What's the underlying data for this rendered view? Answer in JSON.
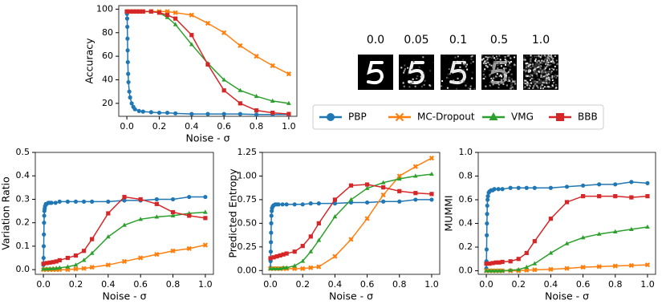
{
  "chart_data": [
    {
      "type": "line",
      "ylabel": "Accuracy",
      "xlabel": "Noise - σ",
      "xlim": [
        -0.05,
        1.05
      ],
      "xticks": [
        {
          "value": 0,
          "label": "0.0"
        },
        0.2,
        0.4,
        0.6,
        0.8,
        {
          "value": 1,
          "label": "1.0"
        }
      ],
      "ylim": [
        9,
        103
      ],
      "yticks": [
        20,
        40,
        60,
        80,
        100
      ],
      "series": [
        {
          "name": "PBP",
          "color": "#1f77b4",
          "marker": "o",
          "x": [
            0,
            0.001,
            0.002,
            0.003,
            0.004,
            0.005,
            0.006,
            0.008,
            0.01,
            0.015,
            0.02,
            0.03,
            0.04,
            0.05,
            0.075,
            0.1,
            0.15,
            0.2,
            0.25,
            0.3,
            0.4,
            0.5,
            0.6,
            0.7,
            0.8,
            0.9,
            1.0
          ],
          "values": [
            98,
            96,
            92,
            85,
            75,
            65,
            55,
            45,
            38,
            30,
            25,
            20,
            17,
            15,
            13.5,
            13,
            12.5,
            12,
            12,
            11.5,
            11,
            11,
            11,
            11,
            10.5,
            10.5,
            10.5
          ]
        },
        {
          "name": "MC-Dropout",
          "color": "#ff7f0e",
          "marker": "x",
          "x": [
            0,
            0.02,
            0.04,
            0.06,
            0.08,
            0.1,
            0.15,
            0.2,
            0.25,
            0.3,
            0.4,
            0.5,
            0.6,
            0.7,
            0.8,
            0.9,
            1.0
          ],
          "values": [
            98,
            98,
            98,
            98,
            98,
            98,
            98,
            98,
            98,
            97,
            95,
            88,
            80,
            69,
            60,
            52,
            45
          ]
        },
        {
          "name": "VMG",
          "color": "#2ca02c",
          "marker": "^",
          "x": [
            0,
            0.02,
            0.04,
            0.06,
            0.08,
            0.1,
            0.15,
            0.2,
            0.25,
            0.3,
            0.4,
            0.5,
            0.6,
            0.7,
            0.8,
            0.9,
            1.0
          ],
          "values": [
            98,
            98,
            98,
            98,
            98,
            98,
            98,
            97,
            93,
            87,
            70,
            54,
            40,
            31,
            26,
            22,
            20
          ]
        },
        {
          "name": "BBB",
          "color": "#d62728",
          "marker": "s",
          "x": [
            0,
            0.02,
            0.04,
            0.06,
            0.08,
            0.1,
            0.15,
            0.2,
            0.25,
            0.3,
            0.4,
            0.5,
            0.6,
            0.7,
            0.8,
            0.9,
            1.0
          ],
          "values": [
            98,
            98,
            98,
            98,
            98,
            98,
            98,
            97,
            95,
            92,
            78,
            53,
            31,
            20,
            14,
            12,
            11
          ]
        }
      ]
    },
    {
      "type": "line",
      "ylabel": "Variation Ratio",
      "xlabel": "Noise - σ",
      "xlim": [
        -0.05,
        1.05
      ],
      "xticks": [
        {
          "value": 0,
          "label": "0.0"
        },
        0.2,
        0.4,
        0.6,
        0.8,
        {
          "value": 1,
          "label": "1.0"
        }
      ],
      "ylim": [
        -0.02,
        0.5
      ],
      "yticks": [
        {
          "value": 0,
          "label": "0.0"
        },
        0.1,
        0.2,
        0.3,
        0.4,
        0.5
      ],
      "series": [
        {
          "name": "PBP",
          "color": "#1f77b4",
          "marker": "o",
          "x": [
            0,
            0.001,
            0.002,
            0.003,
            0.004,
            0.005,
            0.006,
            0.008,
            0.01,
            0.015,
            0.02,
            0.03,
            0.04,
            0.05,
            0.075,
            0.1,
            0.15,
            0.2,
            0.25,
            0.3,
            0.4,
            0.5,
            0.6,
            0.7,
            0.8,
            0.9,
            1.0
          ],
          "values": [
            0.02,
            0.05,
            0.1,
            0.15,
            0.2,
            0.23,
            0.25,
            0.26,
            0.27,
            0.28,
            0.28,
            0.285,
            0.285,
            0.285,
            0.285,
            0.29,
            0.29,
            0.29,
            0.29,
            0.29,
            0.29,
            0.295,
            0.295,
            0.3,
            0.3,
            0.31,
            0.31
          ]
        },
        {
          "name": "MC-Dropout",
          "color": "#ff7f0e",
          "marker": "x",
          "x": [
            0,
            0.02,
            0.04,
            0.06,
            0.08,
            0.1,
            0.15,
            0.2,
            0.25,
            0.3,
            0.4,
            0.5,
            0.6,
            0.7,
            0.8,
            0.9,
            1.0
          ],
          "values": [
            0,
            0,
            0,
            0,
            0,
            0,
            0,
            0.003,
            0.005,
            0.01,
            0.02,
            0.035,
            0.05,
            0.065,
            0.08,
            0.09,
            0.105
          ]
        },
        {
          "name": "VMG",
          "color": "#2ca02c",
          "marker": "^",
          "x": [
            0,
            0.02,
            0.04,
            0.06,
            0.08,
            0.1,
            0.15,
            0.2,
            0.25,
            0.3,
            0.4,
            0.5,
            0.6,
            0.7,
            0.8,
            0.9,
            1.0
          ],
          "values": [
            0.003,
            0.003,
            0.004,
            0.005,
            0.006,
            0.008,
            0.012,
            0.02,
            0.04,
            0.07,
            0.14,
            0.19,
            0.215,
            0.225,
            0.23,
            0.24,
            0.245
          ]
        },
        {
          "name": "BBB",
          "color": "#d62728",
          "marker": "s",
          "x": [
            0,
            0.02,
            0.04,
            0.06,
            0.08,
            0.1,
            0.15,
            0.2,
            0.25,
            0.3,
            0.4,
            0.5,
            0.6,
            0.7,
            0.8,
            0.9,
            1.0
          ],
          "values": [
            0.025,
            0.028,
            0.03,
            0.032,
            0.035,
            0.04,
            0.05,
            0.06,
            0.08,
            0.13,
            0.24,
            0.31,
            0.3,
            0.28,
            0.245,
            0.23,
            0.22
          ]
        }
      ]
    },
    {
      "type": "line",
      "ylabel": "Predicted Entropy",
      "xlabel": "Noise - σ",
      "xlim": [
        -0.05,
        1.05
      ],
      "xticks": [
        {
          "value": 0,
          "label": "0.0"
        },
        0.2,
        0.4,
        0.6,
        0.8,
        {
          "value": 1,
          "label": "1.0"
        }
      ],
      "ylim": [
        -0.04,
        1.25
      ],
      "yticks": [
        {
          "value": 0,
          "label": "0.00"
        },
        0.25,
        {
          "value": 0.5,
          "label": "0.50"
        },
        0.75,
        {
          "value": 1,
          "label": "1.00"
        },
        1.25
      ],
      "series": [
        {
          "name": "PBP",
          "color": "#1f77b4",
          "marker": "o",
          "x": [
            0,
            0.001,
            0.002,
            0.003,
            0.004,
            0.005,
            0.006,
            0.008,
            0.01,
            0.015,
            0.02,
            0.03,
            0.04,
            0.05,
            0.075,
            0.1,
            0.15,
            0.2,
            0.25,
            0.3,
            0.4,
            0.5,
            0.6,
            0.7,
            0.8,
            0.9,
            1.0
          ],
          "values": [
            0.03,
            0.1,
            0.2,
            0.3,
            0.4,
            0.5,
            0.58,
            0.63,
            0.66,
            0.68,
            0.69,
            0.7,
            0.7,
            0.7,
            0.7,
            0.7,
            0.7,
            0.7,
            0.71,
            0.71,
            0.71,
            0.72,
            0.72,
            0.73,
            0.73,
            0.75,
            0.75
          ]
        },
        {
          "name": "MC-Dropout",
          "color": "#ff7f0e",
          "marker": "x",
          "x": [
            0,
            0.02,
            0.04,
            0.06,
            0.08,
            0.1,
            0.15,
            0.2,
            0.25,
            0.3,
            0.4,
            0.5,
            0.6,
            0.7,
            0.8,
            0.9,
            1.0
          ],
          "values": [
            0.02,
            0.02,
            0.02,
            0.02,
            0.02,
            0.02,
            0.02,
            0.02,
            0.03,
            0.04,
            0.15,
            0.33,
            0.55,
            0.8,
            1.0,
            1.1,
            1.19
          ]
        },
        {
          "name": "VMG",
          "color": "#2ca02c",
          "marker": "^",
          "x": [
            0,
            0.02,
            0.04,
            0.06,
            0.08,
            0.1,
            0.15,
            0.2,
            0.25,
            0.3,
            0.4,
            0.5,
            0.6,
            0.7,
            0.8,
            0.9,
            1.0
          ],
          "values": [
            0.02,
            0.02,
            0.02,
            0.02,
            0.03,
            0.03,
            0.05,
            0.1,
            0.2,
            0.32,
            0.57,
            0.75,
            0.87,
            0.93,
            0.97,
            1.0,
            1.02
          ]
        },
        {
          "name": "BBB",
          "color": "#d62728",
          "marker": "s",
          "x": [
            0,
            0.02,
            0.04,
            0.06,
            0.08,
            0.1,
            0.15,
            0.2,
            0.25,
            0.3,
            0.4,
            0.5,
            0.6,
            0.7,
            0.8,
            0.9,
            1.0
          ],
          "values": [
            0.13,
            0.14,
            0.15,
            0.16,
            0.17,
            0.18,
            0.2,
            0.26,
            0.36,
            0.5,
            0.75,
            0.9,
            0.91,
            0.88,
            0.84,
            0.82,
            0.81
          ]
        }
      ]
    },
    {
      "type": "line",
      "ylabel": "MUMMI",
      "xlabel": "Noise - σ",
      "xlim": [
        -0.05,
        1.05
      ],
      "xticks": [
        {
          "value": 0,
          "label": "0.0"
        },
        0.2,
        0.4,
        0.6,
        0.8,
        {
          "value": 1,
          "label": "1.0"
        }
      ],
      "ylim": [
        -0.03,
        1.0
      ],
      "yticks": [
        {
          "value": 0,
          "label": "0.0"
        },
        0.2,
        0.4,
        0.6,
        0.8,
        {
          "value": 1,
          "label": "1.0"
        }
      ],
      "series": [
        {
          "name": "PBP",
          "color": "#1f77b4",
          "marker": "o",
          "x": [
            0,
            0.001,
            0.002,
            0.003,
            0.004,
            0.005,
            0.006,
            0.008,
            0.01,
            0.015,
            0.02,
            0.03,
            0.04,
            0.05,
            0.075,
            0.1,
            0.15,
            0.2,
            0.25,
            0.3,
            0.4,
            0.5,
            0.6,
            0.7,
            0.8,
            0.9,
            1.0
          ],
          "values": [
            0.02,
            0.08,
            0.18,
            0.3,
            0.4,
            0.48,
            0.55,
            0.6,
            0.63,
            0.66,
            0.67,
            0.68,
            0.68,
            0.69,
            0.69,
            0.69,
            0.7,
            0.7,
            0.7,
            0.7,
            0.7,
            0.71,
            0.72,
            0.73,
            0.73,
            0.75,
            0.74
          ]
        },
        {
          "name": "MC-Dropout",
          "color": "#ff7f0e",
          "marker": "x",
          "x": [
            0,
            0.02,
            0.04,
            0.06,
            0.08,
            0.1,
            0.15,
            0.2,
            0.25,
            0.3,
            0.4,
            0.5,
            0.6,
            0.7,
            0.8,
            0.9,
            1.0
          ],
          "values": [
            0,
            0,
            0,
            0,
            0,
            0,
            0,
            0,
            0.005,
            0.008,
            0.012,
            0.02,
            0.03,
            0.035,
            0.04,
            0.045,
            0.05
          ]
        },
        {
          "name": "VMG",
          "color": "#2ca02c",
          "marker": "^",
          "x": [
            0,
            0.02,
            0.04,
            0.06,
            0.08,
            0.1,
            0.15,
            0.2,
            0.25,
            0.3,
            0.4,
            0.5,
            0.6,
            0.7,
            0.8,
            0.9,
            1.0
          ],
          "values": [
            0,
            0,
            0,
            0,
            0,
            0,
            0.005,
            0.01,
            0.03,
            0.06,
            0.15,
            0.23,
            0.28,
            0.31,
            0.33,
            0.35,
            0.37
          ]
        },
        {
          "name": "BBB",
          "color": "#d62728",
          "marker": "s",
          "x": [
            0,
            0.02,
            0.04,
            0.06,
            0.08,
            0.1,
            0.15,
            0.2,
            0.25,
            0.3,
            0.4,
            0.5,
            0.6,
            0.7,
            0.8,
            0.9,
            1.0
          ],
          "values": [
            0.06,
            0.06,
            0.065,
            0.07,
            0.07,
            0.075,
            0.08,
            0.1,
            0.15,
            0.25,
            0.44,
            0.58,
            0.63,
            0.63,
            0.63,
            0.62,
            0.63
          ]
        }
      ]
    }
  ],
  "images": {
    "labels": [
      "0.0",
      "0.05",
      "0.1",
      "0.5",
      "1.0"
    ]
  }
}
